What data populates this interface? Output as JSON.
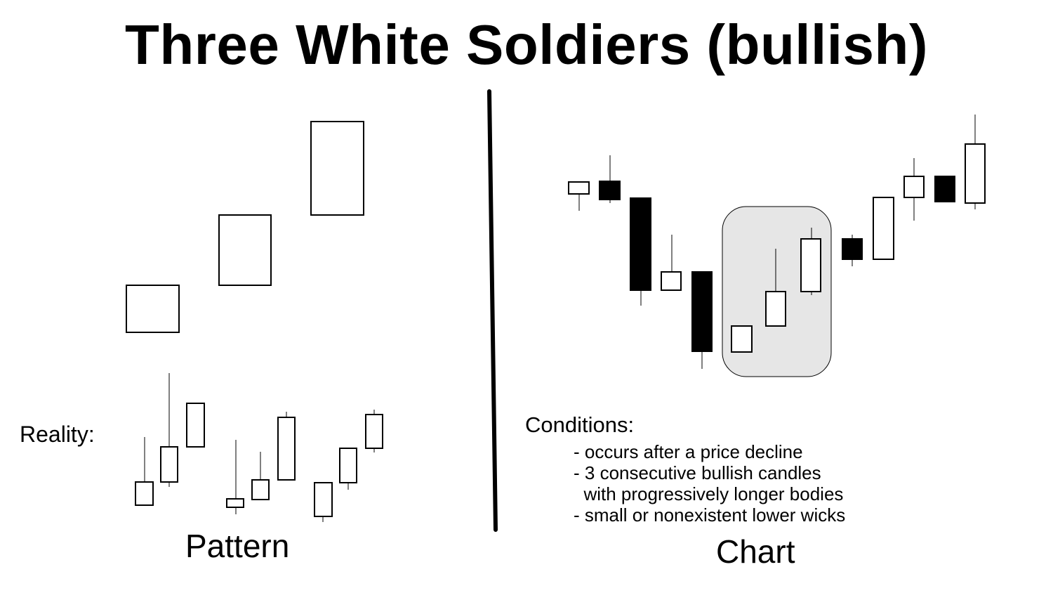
{
  "title": "Three White Soldiers (bullish)",
  "labels": {
    "reality": "Reality:",
    "pattern": "Pattern",
    "chart": "Chart"
  },
  "conditions": {
    "heading": "Conditions:",
    "items": [
      "- occurs after a price decline",
      "- 3 consecutive bullish candles",
      "  with progressively longer bodies",
      "- small or nonexistent lower wicks"
    ]
  },
  "colors": {
    "bullish_fill": "#ffffff",
    "bearish_fill": "#000000",
    "highlight_fill": "#e6e6e6",
    "stroke": "#000000"
  }
}
